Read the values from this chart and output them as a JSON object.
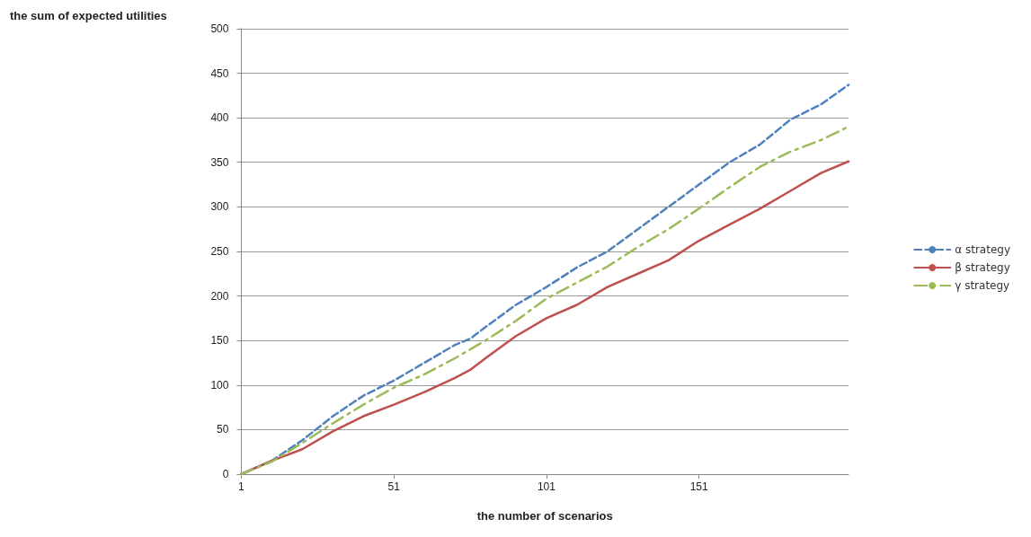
{
  "chart_data": {
    "type": "line",
    "xlabel": "the number of scenarios",
    "ylabel": "the sum of expected utilities",
    "x": [
      1,
      11,
      21,
      31,
      41,
      51,
      61,
      71,
      76,
      81,
      91,
      101,
      111,
      121,
      131,
      141,
      151,
      161,
      171,
      181,
      191,
      200
    ],
    "xlim": [
      1,
      200
    ],
    "xticks": [
      1,
      51,
      101,
      151
    ],
    "ylim": [
      0,
      500
    ],
    "yticks": [
      0,
      50,
      100,
      150,
      200,
      250,
      300,
      350,
      400,
      450,
      500
    ],
    "grid": "y",
    "legend": "right",
    "marker": "none",
    "series": [
      {
        "name": "α strategy",
        "color": "#4f81bd",
        "line_style": "dashed",
        "values": [
          0,
          15,
          38,
          65,
          88,
          105,
          125,
          145,
          152,
          165,
          190,
          210,
          232,
          250,
          275,
          300,
          325,
          350,
          370,
          398,
          415,
          437
        ]
      },
      {
        "name": "β strategy",
        "color": "#c0504d",
        "line_style": "solid",
        "values": [
          0,
          15,
          28,
          48,
          65,
          78,
          92,
          108,
          117,
          130,
          155,
          175,
          190,
          210,
          225,
          240,
          262,
          280,
          298,
          318,
          338,
          351
        ]
      },
      {
        "name": "γ strategy",
        "color": "#9bbb59",
        "line_style": "dashdot",
        "values": [
          0,
          14,
          35,
          57,
          78,
          97,
          112,
          130,
          140,
          150,
          172,
          197,
          215,
          233,
          255,
          275,
          298,
          322,
          345,
          362,
          375,
          390
        ]
      }
    ]
  }
}
